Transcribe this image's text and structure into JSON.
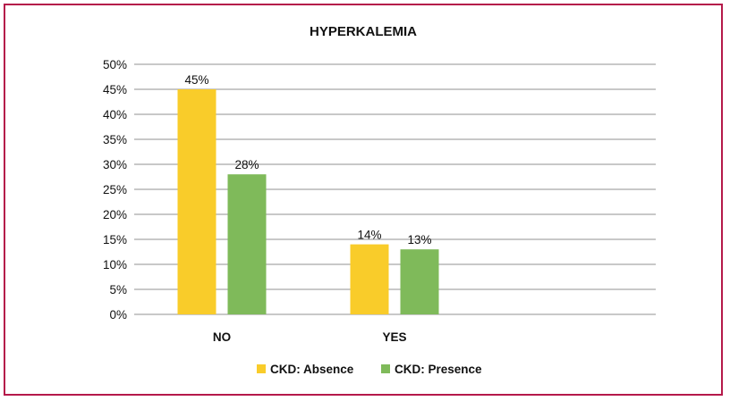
{
  "chart_data": {
    "type": "bar",
    "title": "HYPERKALEMIA",
    "xlabel": "",
    "ylabel": "",
    "categories": [
      "NO",
      "YES"
    ],
    "series": [
      {
        "name": "CKD: Absence",
        "values": [
          45,
          14
        ],
        "color": "#f9cc2a"
      },
      {
        "name": "CKD: Presence",
        "values": [
          28,
          13
        ],
        "color": "#7fba5a"
      }
    ],
    "ylim": [
      0,
      50
    ],
    "ytick_step": 5,
    "y_tick_labels": [
      "0%",
      "5%",
      "10%",
      "15%",
      "20%",
      "25%",
      "30%",
      "35%",
      "40%",
      "45%",
      "50%"
    ],
    "data_labels": [
      [
        "45%",
        "14%"
      ],
      [
        "28%",
        "13%"
      ]
    ],
    "grid": true,
    "legend_position": "bottom",
    "colors": {
      "frame": "#b5194a",
      "grid": "#a6a6a6"
    }
  }
}
